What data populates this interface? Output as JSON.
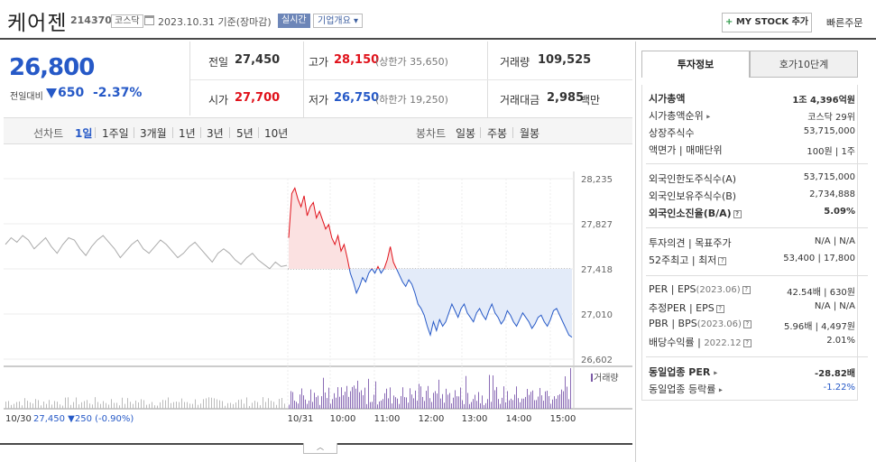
{
  "header": {
    "stock_name": "케어젠",
    "stock_code": "214370",
    "market": "코스닥",
    "as_of": "2023.10.31  기준(장마감)",
    "realtime": "실시간",
    "company_info": "기업개요",
    "mystock_plus": "+",
    "mystock_label": "MY STOCK 추가",
    "quick_order": "빠른주문"
  },
  "price": {
    "current": "26,800",
    "prev_label": "전일대비",
    "change": "650",
    "change_rate": "-2.37%",
    "color_down": "#2659c7",
    "color_up": "#e0121b"
  },
  "stats": {
    "prev_close_label": "전일",
    "prev_close": "27,450",
    "high_label": "고가",
    "high": "28,150",
    "upper_limit": "(상한가 35,650)",
    "volume_label": "거래량",
    "volume": "109,525",
    "open_label": "시가",
    "open": "27,700",
    "low_label": "저가",
    "low": "26,750",
    "lower_limit": "(하한가 19,250)",
    "amount_label": "거래대금",
    "amount": "2,985",
    "amount_unit": "백만"
  },
  "toolbar": {
    "line_label": "선차트",
    "periods": [
      "1일",
      "1주일",
      "3개월",
      "1년",
      "3년",
      "5년",
      "10년"
    ],
    "active_period": "1일",
    "candle_label": "봉차트",
    "candles": [
      "일봉",
      "주봉",
      "월봉"
    ]
  },
  "chart_data": {
    "type": "line",
    "y_ticks": [
      "28,235",
      "27,827",
      "27,418",
      "27,010",
      "26,602"
    ],
    "ylim": [
      26602,
      28235
    ],
    "reference": 27418,
    "x_ticks": [
      "10/31",
      "10:00",
      "11:00",
      "12:00",
      "13:00",
      "14:00",
      "15:00"
    ],
    "prev_day_label": "10/30",
    "prev_day_summary": "27,450 ▼250 (-0.90%)",
    "volume_label": "거래량",
    "series": [
      {
        "values": [
          27640,
          27700,
          27660,
          27720,
          27680,
          27600,
          27650,
          27700,
          27620,
          27560,
          27640,
          27700,
          27680,
          27600,
          27540,
          27620,
          27680,
          27720,
          27660,
          27600,
          27520,
          27580,
          27640,
          27680,
          27600,
          27560,
          27620,
          27680,
          27640,
          27580,
          27520,
          27560,
          27620,
          27660,
          27600,
          27540,
          27480,
          27560,
          27600,
          27560,
          27500,
          27460,
          27520,
          27560,
          27500,
          27460,
          27420,
          27480,
          27440,
          27450
        ]
      },
      {
        "values": [
          27700,
          28100,
          28150,
          28050,
          27980,
          28080,
          27900,
          27980,
          28020,
          27880,
          27940,
          27860,
          27780,
          27820,
          27700,
          27640,
          27720,
          27580,
          27640,
          27520,
          27380,
          27300,
          27200,
          27260,
          27340,
          27300,
          27380,
          27420,
          27380,
          27440,
          27380,
          27420,
          27500,
          27620,
          27480,
          27420,
          27360,
          27300,
          27260,
          27320,
          27280,
          27200,
          27100,
          27060,
          27000,
          26900,
          26820,
          26940,
          26860,
          26960,
          26900,
          26940,
          27020,
          27100,
          27040,
          26980,
          27060,
          27100,
          27020,
          26980,
          26940,
          27020,
          27060,
          27000,
          26960,
          27040,
          27100,
          27020,
          26980,
          26920,
          26960,
          27040,
          27000,
          26940,
          26900,
          26960,
          27020,
          26980,
          26940,
          26880,
          26920,
          26980,
          27000,
          26940,
          26900,
          26960,
          27040,
          27060,
          27000,
          26940,
          26880,
          26820,
          26800
        ]
      }
    ]
  },
  "right_tabs": {
    "info": "투자정보",
    "ask": "호가10단계"
  },
  "investment": {
    "market_cap_label": "시가총액",
    "market_cap": "1조 4,396억원",
    "market_cap_rank_label": "시가총액순위",
    "market_cap_rank": "코스닥 29위",
    "listed_shares_label": "상장주식수",
    "listed_shares": "53,715,000",
    "par_label": "액면가",
    "unit_label": "매매단위",
    "par": "100원",
    "unit": "1주",
    "foreign_limit_label": "외국인한도주식수(A)",
    "foreign_limit": "53,715,000",
    "foreign_hold_label": "외국인보유주식수(B)",
    "foreign_hold": "2,734,888",
    "foreign_rate_label": "외국인소진율(B/A)",
    "foreign_rate": "5.09%",
    "opinion_label": "투자의견",
    "target_label": "목표주가",
    "opinion": "N/A",
    "target": "N/A",
    "week52_label": "52주최고",
    "week52_low_label": "최저",
    "week52_high": "53,400",
    "week52_low": "17,800",
    "per_label": "PER",
    "eps_label": "EPS",
    "eps_date": "(2023.06)",
    "per": "42.54배",
    "eps": "630원",
    "est_per_label": "추정PER",
    "est_eps_label": "EPS",
    "est_per": "N/A",
    "est_eps": "N/A",
    "pbr_label": "PBR",
    "bps_label": "BPS",
    "bps_date": "(2023.06)",
    "pbr": "5.96배",
    "bps": "4,497원",
    "div_label": "배당수익률",
    "div_date": "2022.12",
    "div": "2.01%",
    "ind_per_label": "동일업종 PER",
    "ind_per": "-28.82배",
    "ind_rate_label": "동일업종 등락률",
    "ind_rate": "-1.22%"
  },
  "collapse_icon": "chevron-up"
}
